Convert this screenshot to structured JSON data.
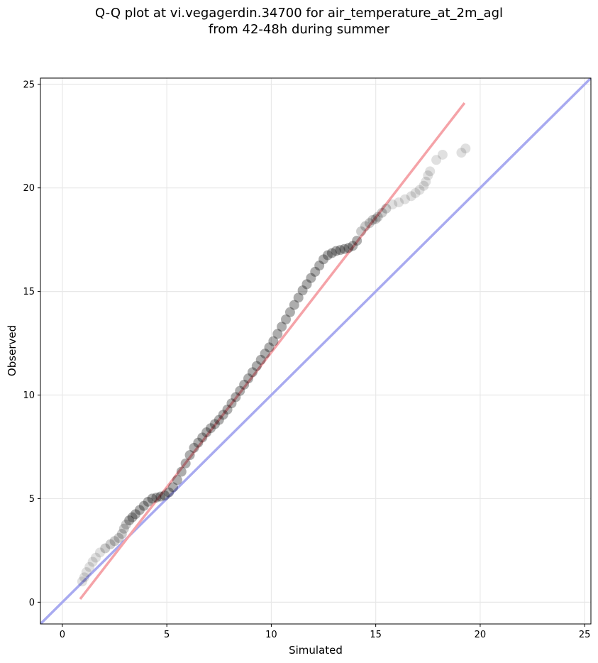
{
  "chart_data": {
    "type": "scatter",
    "title_line1": "Q-Q plot at vi.vegagerdin.34700 for air_temperature_at_2m_agl",
    "title_line2": "from 42-48h during summer",
    "xlabel": "Simulated",
    "ylabel": "Observed",
    "xlim": [
      -1.05,
      25.3
    ],
    "ylim": [
      -1.05,
      25.3
    ],
    "xticks": [
      0,
      5,
      10,
      15,
      20,
      25
    ],
    "yticks": [
      0,
      5,
      10,
      15,
      20,
      25
    ],
    "grid": true,
    "colors": {
      "points": "#000000",
      "fit_line": "#f5a3a8",
      "identity_line": "#a8aaf0",
      "grid": "#e8e8e8"
    },
    "series": [
      {
        "kind": "points",
        "x": [
          0.95,
          1.05,
          1.15,
          1.3,
          1.45,
          1.6,
          1.8,
          2.05,
          2.3,
          2.5,
          2.7,
          2.85,
          2.95,
          3.05,
          3.2,
          3.35,
          3.5,
          3.7,
          3.9,
          4.1,
          4.3,
          4.5,
          4.7,
          4.9,
          5.1,
          5.3,
          5.5,
          5.7,
          5.9,
          6.1,
          6.3,
          6.5,
          6.7,
          6.9,
          7.1,
          7.3,
          7.5,
          7.7,
          7.9,
          8.1,
          8.3,
          8.5,
          8.7,
          8.9,
          9.1,
          9.3,
          9.5,
          9.7,
          9.9,
          10.1,
          10.3,
          10.5,
          10.7,
          10.9,
          11.1,
          11.3,
          11.5,
          11.7,
          11.9,
          12.1,
          12.3,
          12.5,
          12.7,
          12.9,
          13.1,
          13.3,
          13.5,
          13.7,
          13.9,
          14.1,
          14.3,
          14.5,
          14.7,
          14.85,
          15.0,
          15.1,
          15.3,
          15.5,
          15.8,
          16.1,
          16.4,
          16.7,
          16.9,
          17.1,
          17.3,
          17.4,
          17.5,
          17.6,
          17.9,
          18.2,
          19.1,
          19.3
        ],
        "y": [
          1.0,
          1.2,
          1.45,
          1.7,
          1.95,
          2.15,
          2.4,
          2.6,
          2.8,
          2.95,
          3.1,
          3.3,
          3.55,
          3.75,
          3.95,
          4.1,
          4.25,
          4.45,
          4.65,
          4.85,
          5.0,
          5.05,
          5.1,
          5.15,
          5.3,
          5.55,
          5.9,
          6.3,
          6.7,
          7.1,
          7.45,
          7.7,
          7.95,
          8.2,
          8.4,
          8.6,
          8.8,
          9.05,
          9.3,
          9.6,
          9.9,
          10.2,
          10.5,
          10.8,
          11.1,
          11.4,
          11.7,
          12.0,
          12.3,
          12.6,
          12.95,
          13.3,
          13.65,
          14.0,
          14.35,
          14.7,
          15.05,
          15.35,
          15.65,
          15.95,
          16.25,
          16.55,
          16.75,
          16.85,
          16.95,
          17.0,
          17.05,
          17.1,
          17.2,
          17.45,
          17.9,
          18.15,
          18.3,
          18.45,
          18.5,
          18.6,
          18.8,
          19.0,
          19.2,
          19.3,
          19.45,
          19.6,
          19.75,
          19.9,
          20.1,
          20.3,
          20.6,
          20.8,
          21.35,
          21.6,
          21.7,
          21.9
        ]
      },
      {
        "kind": "fit_line",
        "x": [
          0.85,
          19.25
        ],
        "y": [
          0.15,
          24.1
        ]
      },
      {
        "kind": "identity_line",
        "x": [
          -1.05,
          25.3
        ],
        "y": [
          -1.05,
          25.3
        ]
      }
    ]
  }
}
